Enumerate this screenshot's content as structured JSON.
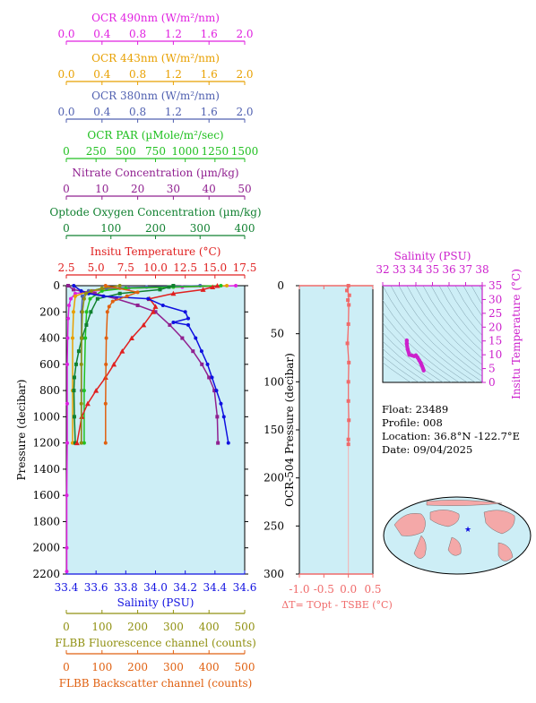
{
  "colors": {
    "plot_bg": "#cdeef6",
    "magenta": "#e020e0",
    "orange": "#e8a000",
    "slate": "#5060b0",
    "green": "#20c020",
    "purple": "#902090",
    "dkgreen": "#108030",
    "red": "#e02020",
    "blue": "#1010e0",
    "olive": "#909010",
    "dkorange": "#e06010",
    "salmon": "#f06a6a",
    "violet": "#cc20cc",
    "black": "#000000"
  },
  "chart_data": [
    {
      "type": "line",
      "id": "profile",
      "ylabel": "Pressure (decibar)",
      "ylim": [
        2200,
        0
      ],
      "yticks": [
        0,
        200,
        400,
        600,
        800,
        1000,
        1200,
        1400,
        1600,
        1800,
        2000,
        2200
      ],
      "top_axes": [
        {
          "label": "OCR 490nm (W/m²/nm)",
          "color_key": "magenta",
          "min": 0,
          "max": 2,
          "ticks": [
            "0.0",
            "0.4",
            "0.8",
            "1.2",
            "1.6",
            "2.0"
          ]
        },
        {
          "label": "OCR 443nm (W/m²/nm)",
          "color_key": "orange",
          "min": 0,
          "max": 2,
          "ticks": [
            "0.0",
            "0.4",
            "0.8",
            "1.2",
            "1.6",
            "2.0"
          ]
        },
        {
          "label": "OCR 380nm (W/m²/nm)",
          "color_key": "slate",
          "min": 0,
          "max": 2,
          "ticks": [
            "0.0",
            "0.4",
            "0.8",
            "1.2",
            "1.6",
            "2.0"
          ]
        },
        {
          "label": "OCR PAR (µMole/m²/sec)",
          "color_key": "green",
          "min": 0,
          "max": 1500,
          "ticks": [
            "0",
            "250",
            "500",
            "750",
            "1000",
            "1250",
            "1500"
          ]
        },
        {
          "label": "Nitrate Concentration (µm/kg)",
          "color_key": "purple",
          "min": 0,
          "max": 50,
          "ticks": [
            "0",
            "10",
            "20",
            "30",
            "40",
            "50"
          ]
        },
        {
          "label": "Optode Oxygen Concentration (µm/kg)",
          "color_key": "dkgreen",
          "min": 0,
          "max": 400,
          "ticks": [
            "0",
            "100",
            "200",
            "300",
            "400"
          ]
        },
        {
          "label": "Insitu Temperature (°C)",
          "color_key": "red",
          "min": 2.5,
          "max": 17.5,
          "ticks": [
            "2.5",
            "5.0",
            "7.5",
            "10.0",
            "12.5",
            "15.0",
            "17.5"
          ]
        }
      ],
      "bottom_axes": [
        {
          "label": "Salinity (PSU)",
          "color_key": "blue",
          "min": 33.4,
          "max": 34.6,
          "ticks": [
            "33.4",
            "33.6",
            "33.8",
            "34.0",
            "34.2",
            "34.4",
            "34.6"
          ]
        },
        {
          "label": "FLBB Fluorescence channel (counts)",
          "color_key": "olive",
          "min": 0,
          "max": 500,
          "ticks": [
            "0",
            "100",
            "200",
            "300",
            "400",
            "500"
          ]
        },
        {
          "label": "FLBB Backscatter channel (counts)",
          "color_key": "dkorange",
          "min": 0,
          "max": 500,
          "ticks": [
            "0",
            "100",
            "200",
            "300",
            "400",
            "500"
          ]
        }
      ],
      "series": [
        {
          "color_key": "magenta",
          "axis": 0,
          "marker": "dot",
          "x": [
            1.9,
            1.3,
            0.7,
            0.3,
            0.1,
            0.05,
            0.03,
            0.02,
            0.015,
            0.01,
            0.01,
            0.01,
            0.005,
            0.005,
            0.005
          ],
          "y": [
            0,
            10,
            20,
            40,
            60,
            100,
            150,
            250,
            400,
            600,
            900,
            1200,
            1600,
            2000,
            2180
          ]
        },
        {
          "color_key": "orange",
          "axis": 1,
          "marker": "dot",
          "x": [
            1.8,
            1.2,
            0.6,
            0.25,
            0.1,
            0.08,
            0.07,
            0.07,
            0.07
          ],
          "y": [
            0,
            10,
            20,
            40,
            80,
            200,
            400,
            800,
            1200
          ]
        },
        {
          "color_key": "slate",
          "axis": 2,
          "marker": "dot",
          "x": [
            1.5,
            0.9,
            0.45,
            0.25,
            0.18,
            0.17,
            0.17,
            0.17,
            0.17
          ],
          "y": [
            0,
            10,
            20,
            40,
            80,
            200,
            400,
            800,
            1200
          ]
        },
        {
          "color_key": "green",
          "axis": 3,
          "marker": "dot",
          "x": [
            1300,
            900,
            500,
            300,
            200,
            170,
            160,
            150,
            150
          ],
          "y": [
            0,
            10,
            20,
            40,
            100,
            200,
            400,
            800,
            1200
          ]
        },
        {
          "color_key": "purple",
          "axis": 4,
          "marker": "square",
          "x": [
            0.5,
            2,
            8,
            14,
            20,
            25,
            29,
            32.5,
            35.5,
            38,
            40,
            41.5,
            42.3,
            42.5
          ],
          "y": [
            0,
            30,
            60,
            100,
            150,
            200,
            300,
            400,
            500,
            600,
            700,
            800,
            1000,
            1200
          ]
        },
        {
          "color_key": "dkgreen",
          "axis": 5,
          "marker": "square",
          "x": [
            240,
            230,
            210,
            120,
            70,
            55,
            45,
            35,
            28,
            22,
            18,
            17,
            18,
            20
          ],
          "y": [
            0,
            10,
            30,
            60,
            100,
            200,
            300,
            400,
            500,
            600,
            700,
            800,
            1000,
            1200
          ]
        },
        {
          "color_key": "red",
          "axis": 6,
          "marker": "triangle",
          "x": [
            15.2,
            14.8,
            14.0,
            11.5,
            9.5,
            10.0,
            9.8,
            9.0,
            8.0,
            7.2,
            6.5,
            5.8,
            5.0,
            4.3,
            3.8,
            3.4
          ],
          "y": [
            0,
            10,
            30,
            60,
            100,
            160,
            200,
            300,
            400,
            500,
            600,
            700,
            800,
            900,
            1000,
            1200
          ]
        },
        {
          "color_key": "blue",
          "axis": 7,
          "marker": "dot",
          "x": [
            33.45,
            33.5,
            33.55,
            33.65,
            33.95,
            34.05,
            34.2,
            34.22,
            34.12,
            34.22,
            34.27,
            34.31,
            34.35,
            34.38,
            34.41,
            34.44,
            34.46,
            34.49
          ],
          "y": [
            0,
            40,
            60,
            80,
            100,
            150,
            200,
            250,
            280,
            300,
            400,
            500,
            600,
            700,
            800,
            900,
            1000,
            1200
          ]
        },
        {
          "color_key": "olive",
          "axis": 8,
          "marker": "dot",
          "x": [
            150,
            100,
            70,
            55,
            50,
            45,
            43,
            42,
            42,
            42
          ],
          "y": [
            0,
            20,
            40,
            60,
            100,
            200,
            400,
            600,
            900,
            1200
          ]
        },
        {
          "color_key": "dkorange",
          "axis": 9,
          "marker": "dot",
          "x": [
            110,
            200,
            170,
            130,
            120,
            115,
            112,
            111,
            110,
            110
          ],
          "y": [
            0,
            50,
            80,
            120,
            160,
            200,
            400,
            600,
            900,
            1200
          ]
        }
      ]
    },
    {
      "type": "line",
      "id": "delta",
      "ylabel": "OCR-504 Pressure (decibar)",
      "xlabel": "ΔT= TOpt - TSBE (°C)",
      "xlim": [
        -1.0,
        0.5
      ],
      "ylim": [
        300,
        0
      ],
      "xticks": [
        "-1.0",
        "-0.5",
        "0.0",
        "0.5"
      ],
      "yticks": [
        0,
        50,
        100,
        150,
        200,
        250,
        300
      ],
      "series": [
        {
          "color_key": "salmon",
          "x": [
            0.0,
            -0.03,
            0.02,
            -0.01,
            0.01,
            0.0,
            -0.02,
            0.01,
            0.0,
            0.0,
            0.01,
            0.0,
            0.0
          ],
          "y": [
            0,
            5,
            10,
            15,
            20,
            40,
            60,
            80,
            100,
            120,
            140,
            160,
            165
          ]
        }
      ]
    },
    {
      "type": "scatter",
      "id": "ts",
      "xlabel": "Salinity (PSU)",
      "ylabel": "Insitu Temperature (°C)",
      "xlim": [
        32,
        38
      ],
      "ylim": [
        0,
        35
      ],
      "xticks": [
        "32",
        "33",
        "34",
        "35",
        "36",
        "37",
        "38"
      ],
      "yticks": [
        "0",
        "5",
        "10",
        "15",
        "20",
        "25",
        "30",
        "35"
      ],
      "series": [
        {
          "color_key": "violet",
          "x": [
            33.45,
            33.45,
            33.5,
            33.6,
            33.9,
            34.0,
            34.1,
            34.2,
            34.28,
            34.33,
            34.38,
            34.43,
            34.47
          ],
          "y": [
            15.2,
            14.0,
            12.0,
            10.0,
            9.5,
            9.8,
            9.0,
            8.0,
            7.2,
            6.5,
            5.8,
            5.0,
            4.3
          ]
        }
      ]
    }
  ],
  "float_info": {
    "float": "Float:  23489",
    "profile": "Profile:  008",
    "location": "Location:  36.8°N  -122.7°E",
    "date": "Date:  09/04/2025"
  }
}
